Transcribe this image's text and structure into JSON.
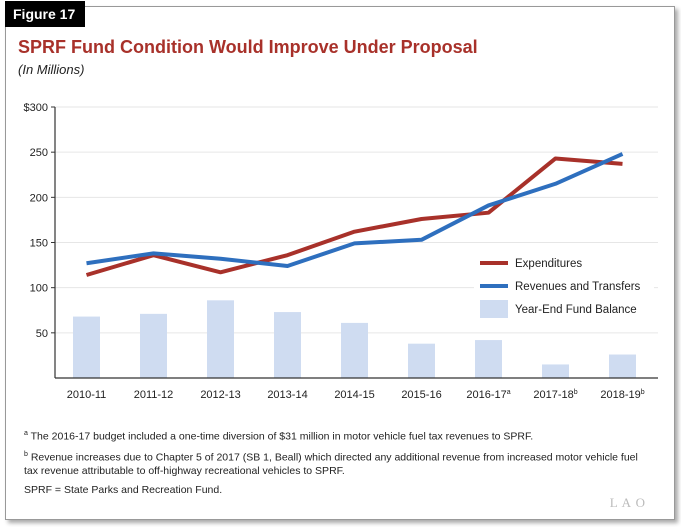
{
  "figure_label": "Figure 17",
  "chart_data": {
    "type": "bar+line",
    "title": "SPRF Fund Condition Would Improve Under Proposal",
    "subtitle": "(In Millions)",
    "categories": [
      "2010-11",
      "2011-12",
      "2012-13",
      "2013-14",
      "2014-15",
      "2015-16",
      "2016-17",
      "2017-18",
      "2018-19"
    ],
    "category_notes": [
      "",
      "",
      "",
      "",
      "",
      "",
      "a",
      "b",
      "b"
    ],
    "ylim": [
      0,
      300
    ],
    "yticks": [
      {
        "v": 50,
        "label": "50"
      },
      {
        "v": 100,
        "label": "100"
      },
      {
        "v": 150,
        "label": "150"
      },
      {
        "v": 200,
        "label": "200"
      },
      {
        "v": 250,
        "label": "250"
      },
      {
        "v": 300,
        "label": "$300"
      }
    ],
    "legend_position": "right",
    "series": [
      {
        "name": "Expenditures",
        "type": "line",
        "color": "#a8312a",
        "values": [
          114,
          136,
          117,
          136,
          162,
          176,
          183,
          243,
          237
        ]
      },
      {
        "name": "Revenues and Transfers",
        "type": "line",
        "color": "#2e6fbe",
        "values": [
          127,
          138,
          132,
          124,
          149,
          153,
          191,
          215,
          248
        ]
      },
      {
        "name": "Year-End Fund Balance",
        "type": "bar",
        "color": "#cfdcf1",
        "values": [
          68,
          71,
          86,
          73,
          61,
          38,
          42,
          15,
          26
        ]
      }
    ]
  },
  "footnotes": {
    "a_mark": "a",
    "a": "The 2016-17 budget included a one-time diversion of $31 million in motor vehicle fuel tax revenues to SPRF.",
    "b_mark": "b",
    "b": "Revenue increases due to Chapter 5 of 2017 (SB 1, Beall) which directed any additional revenue from increased motor vehicle fuel tax revenue attributable to off-highway recreational vehicles to SPRF.",
    "abbrev": "SPRF = State Parks and Recreation Fund."
  },
  "logo": "LAO"
}
